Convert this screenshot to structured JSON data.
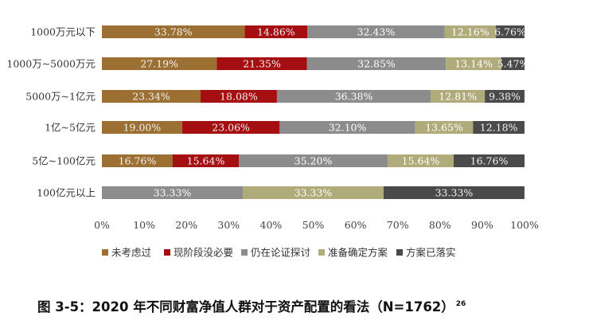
{
  "chart_data": {
    "type": "bar",
    "orientation": "horizontal",
    "stacked": true,
    "categories": [
      "1000万元以下",
      "1000万~5000万元",
      "5000万~1亿元",
      "1亿~5亿元",
      "5亿~100亿元",
      "100亿元以上"
    ],
    "series": [
      {
        "name": "未考虑过",
        "color": "#9c6f33",
        "values": [
          33.78,
          27.19,
          23.34,
          19.0,
          16.76,
          0
        ],
        "labels": [
          "33.78%",
          "27.19%",
          "23.34%",
          "19.00%",
          "16.76%",
          ""
        ]
      },
      {
        "name": "现阶段没必要",
        "color": "#a50f12",
        "values": [
          14.86,
          21.35,
          18.08,
          23.06,
          15.64,
          0
        ],
        "labels": [
          "14.86%",
          "21.35%",
          "18.08%",
          "23.06%",
          "15.64%",
          ""
        ]
      },
      {
        "name": "仍在论证探讨",
        "color": "#8c8c8c",
        "values": [
          32.43,
          32.85,
          36.38,
          32.1,
          35.2,
          33.33
        ],
        "labels": [
          "32.43%",
          "32.85%",
          "36.38%",
          "32.10%",
          "35.20%",
          "33.33%"
        ]
      },
      {
        "name": "准备确定方案",
        "color": "#b0ab7a",
        "values": [
          12.16,
          13.14,
          12.81,
          13.65,
          15.64,
          33.33
        ],
        "labels": [
          "12.16%",
          "13.14%",
          "12.81%",
          "13.65%",
          "15.64%",
          "33.33%"
        ]
      },
      {
        "name": "方案已落实",
        "color": "#4a4a4a",
        "values": [
          6.76,
          5.47,
          9.38,
          12.18,
          16.76,
          33.33
        ],
        "labels": [
          "6.76%",
          "5.47%",
          "9.38%",
          "12.18%",
          "16.76%",
          "33.33%"
        ]
      }
    ],
    "xlim": [
      0,
      100
    ],
    "xticks": [
      "0%",
      "10%",
      "20%",
      "30%",
      "40%",
      "50%",
      "60%",
      "70%",
      "80%",
      "90%",
      "100%"
    ],
    "legend_position": "bottom",
    "grid": false
  },
  "caption": {
    "text": "图 3-5：2020 年不同财富净值人群对于资产配置的看法（N=1762）",
    "footnote": "26"
  }
}
